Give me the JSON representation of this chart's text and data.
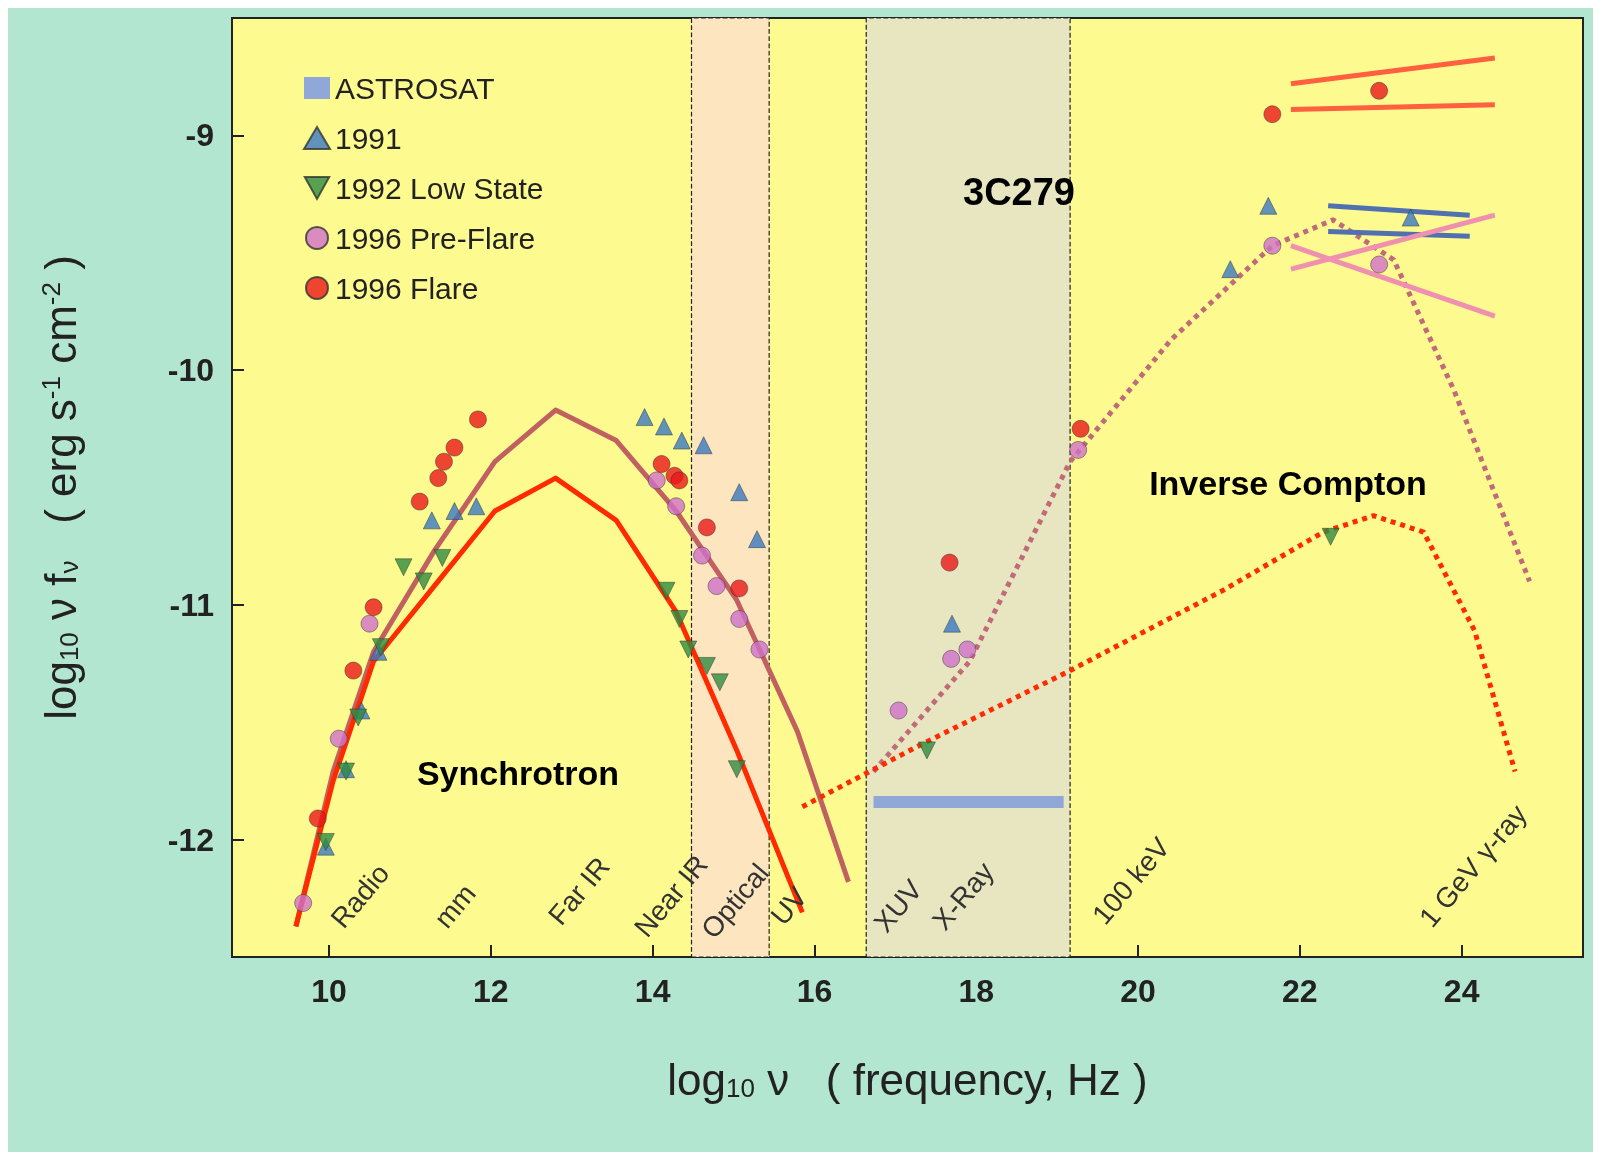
{
  "chart_data": {
    "type": "scatter",
    "title": "3C279",
    "xlabel": "log$_{10}$ ν   ( frequency, Hz )",
    "ylabel": "log$_{10}$ ν f$_{ν}$   ( erg s$^{-1}$ cm$^{-2}$ )",
    "xlim": [
      8.8,
      25.5
    ],
    "xticks": [
      10,
      12,
      14,
      16,
      18,
      20,
      22,
      24
    ],
    "ylim": [
      -12.5,
      -8.5
    ],
    "yticks": [
      -12,
      -11,
      -10,
      -9
    ],
    "grid": false,
    "legend": "top left",
    "series": [
      {
        "name": "ASTROSAT",
        "type": "line",
        "color": "#8fa8d8",
        "marker": "none",
        "x": [
          16.73,
          19.08
        ],
        "values": [
          -11.84,
          -11.84
        ]
      },
      {
        "name": "1991",
        "color": "#3a78c0",
        "marker": "triangle",
        "x": [
          9.96,
          10.21,
          10.4,
          10.61,
          11.27,
          11.55,
          11.82,
          13.9,
          14.14,
          14.36,
          14.63,
          15.07,
          15.29,
          17.7,
          21.14,
          21.61,
          23.37
        ],
        "values": [
          -12.03,
          -11.7,
          -11.45,
          -11.2,
          -10.64,
          -10.6,
          -10.58,
          -10.2,
          -10.24,
          -10.3,
          -10.32,
          -10.52,
          -10.72,
          -11.08,
          -9.57,
          -9.3,
          -9.35
        ]
      },
      {
        "name": "1992 Low State",
        "color": "#2e8b3e",
        "marker": "triangle-down",
        "x": [
          9.96,
          10.21,
          10.36,
          10.64,
          10.92,
          11.17,
          11.4,
          14.17,
          14.33,
          14.44,
          14.67,
          14.83,
          15.04,
          17.39,
          22.38
        ],
        "values": [
          -12.01,
          -11.71,
          -11.48,
          -11.18,
          -10.84,
          -10.9,
          -10.8,
          -10.94,
          -11.06,
          -11.19,
          -11.26,
          -11.33,
          -11.7,
          -11.62,
          -10.71
        ]
      },
      {
        "name": "1996 Pre-Flare",
        "color": "#d070c8",
        "marker": "circle",
        "x": [
          9.68,
          10.12,
          10.5,
          14.05,
          14.29,
          14.61,
          14.79,
          15.07,
          15.32,
          17.04,
          17.69,
          17.89,
          19.26,
          21.66,
          22.98
        ],
        "values": [
          -12.27,
          -11.57,
          -11.08,
          -10.47,
          -10.58,
          -10.79,
          -10.92,
          -11.06,
          -11.19,
          -11.45,
          -11.23,
          -11.19,
          -10.34,
          -9.47,
          -9.55
        ]
      },
      {
        "name": "1996 Flare",
        "color": "#e81818",
        "marker": "circle",
        "x": [
          9.86,
          10.3,
          10.55,
          11.12,
          11.35,
          11.42,
          11.55,
          11.84,
          14.11,
          14.27,
          14.33,
          14.67,
          15.07,
          17.67,
          19.29,
          21.66,
          22.98
        ],
        "values": [
          -11.91,
          -11.28,
          -11.01,
          -10.56,
          -10.46,
          -10.39,
          -10.33,
          -10.21,
          -10.4,
          -10.45,
          -10.47,
          -10.67,
          -10.93,
          -10.82,
          -10.25,
          -8.91,
          -8.81
        ]
      },
      {
        "type": "line",
        "color": "#c06060",
        "marker": "none",
        "line_style": "solid",
        "x": [
          9.59,
          10.05,
          10.55,
          11.3,
          12.05,
          12.8,
          13.55,
          14.29,
          15.04,
          15.79,
          16.42
        ],
        "values": [
          -12.37,
          -11.71,
          -11.2,
          -10.77,
          -10.39,
          -10.17,
          -10.3,
          -10.6,
          -10.98,
          -11.54,
          -12.18
        ]
      },
      {
        "type": "line",
        "color": "#ff2a00",
        "marker": "none",
        "line_style": "solid",
        "x": [
          9.59,
          10.05,
          10.55,
          11.3,
          12.05,
          12.8,
          13.55,
          14.29,
          15.04,
          15.85
        ],
        "values": [
          -12.37,
          -11.75,
          -11.24,
          -10.92,
          -10.6,
          -10.46,
          -10.64,
          -11.03,
          -11.62,
          -12.31
        ]
      },
      {
        "type": "line",
        "color": "#c06a7a",
        "marker": "none",
        "line_style": "dotted",
        "x": [
          16.73,
          17.92,
          19.16,
          20.41,
          21.66,
          22.41,
          23.16,
          23.91,
          24.84
        ],
        "values": [
          -11.71,
          -11.24,
          -10.39,
          -9.87,
          -9.47,
          -9.36,
          -9.53,
          -10.09,
          -10.9
        ]
      },
      {
        "type": "line",
        "color": "#ff2a00",
        "marker": "none",
        "line_style": "dotted",
        "x": [
          15.85,
          17.29,
          19.16,
          21.04,
          22.29,
          22.91,
          23.53,
          24.16,
          24.66
        ],
        "values": [
          -11.86,
          -11.6,
          -11.28,
          -10.94,
          -10.69,
          -10.62,
          -10.69,
          -11.11,
          -11.71
        ]
      },
      {
        "type": "line",
        "color": "#ff6040",
        "marker": "none",
        "line_style": "solid",
        "x": [
          21.89,
          24.41
        ],
        "values": [
          -8.78,
          -8.67
        ]
      },
      {
        "type": "line",
        "color": "#ff6040",
        "marker": "none",
        "line_style": "solid",
        "x": [
          21.89,
          24.41
        ],
        "values": [
          -8.89,
          -8.87
        ]
      },
      {
        "type": "line",
        "color": "#5070b0",
        "marker": "none",
        "line_style": "solid",
        "x": [
          22.35,
          24.1
        ],
        "values": [
          -9.3,
          -9.34
        ]
      },
      {
        "type": "line",
        "color": "#5070b0",
        "marker": "none",
        "line_style": "solid",
        "x": [
          22.35,
          24.1
        ],
        "values": [
          -9.41,
          -9.43
        ]
      },
      {
        "type": "line",
        "color": "#f090b0",
        "marker": "none",
        "line_style": "solid",
        "x": [
          21.89,
          24.41
        ],
        "values": [
          -9.47,
          -9.77
        ]
      },
      {
        "type": "line",
        "color": "#f090b0",
        "marker": "none",
        "line_style": "solid",
        "x": [
          21.89,
          24.41
        ],
        "values": [
          -9.57,
          -9.34
        ]
      }
    ],
    "bands": [
      {
        "axis": "x",
        "from": 14.48,
        "to": 15.44,
        "color": "#fde5c0"
      },
      {
        "axis": "x",
        "from": 16.64,
        "to": 19.16,
        "color": "#e8e6c0"
      }
    ],
    "annotations": [
      "Synchrotron",
      "Inverse Compton",
      "Radio",
      "mm",
      "Far IR",
      "Near IR",
      "Optical",
      "UV",
      "XUV",
      "X-Ray",
      "100 keV",
      "1 GeV γ-ray"
    ]
  }
}
